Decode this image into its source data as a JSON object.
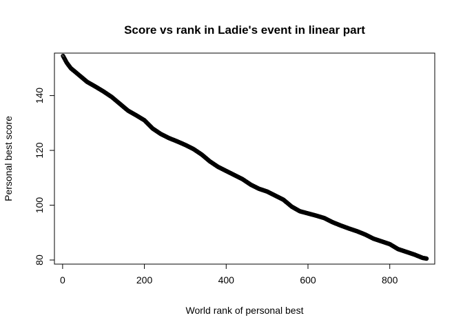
{
  "chart_data": {
    "type": "scatter",
    "title": "Score vs rank in Ladie's event in linear part",
    "xlabel": "World rank of personal best",
    "ylabel": "Personal best score",
    "xlim": [
      -20,
      910
    ],
    "ylim": [
      78.5,
      155.5
    ],
    "xticks": [
      0,
      200,
      400,
      600,
      800
    ],
    "yticks": [
      80,
      100,
      120,
      140
    ],
    "grid": false,
    "legend": "none",
    "point_color": "#000000",
    "n_points": 890,
    "curve_keypoints": [
      [
        1,
        154.5
      ],
      [
        10,
        152
      ],
      [
        20,
        150
      ],
      [
        40,
        147.5
      ],
      [
        60,
        145
      ],
      [
        80,
        143.3
      ],
      [
        100,
        141.5
      ],
      [
        120,
        139.5
      ],
      [
        140,
        137
      ],
      [
        160,
        134.5
      ],
      [
        180,
        132.8
      ],
      [
        200,
        131
      ],
      [
        220,
        128
      ],
      [
        240,
        126
      ],
      [
        260,
        124.5
      ],
      [
        280,
        123.3
      ],
      [
        300,
        122
      ],
      [
        320,
        120.5
      ],
      [
        340,
        118.5
      ],
      [
        360,
        116
      ],
      [
        380,
        114
      ],
      [
        400,
        112.5
      ],
      [
        420,
        111
      ],
      [
        440,
        109.5
      ],
      [
        460,
        107.5
      ],
      [
        480,
        106
      ],
      [
        500,
        105
      ],
      [
        520,
        103.5
      ],
      [
        540,
        102
      ],
      [
        560,
        99.5
      ],
      [
        580,
        97.8
      ],
      [
        600,
        97
      ],
      [
        620,
        96.2
      ],
      [
        640,
        95.3
      ],
      [
        660,
        93.8
      ],
      [
        680,
        92.6
      ],
      [
        700,
        91.5
      ],
      [
        720,
        90.5
      ],
      [
        740,
        89.3
      ],
      [
        760,
        87.8
      ],
      [
        780,
        86.8
      ],
      [
        800,
        85.8
      ],
      [
        820,
        84
      ],
      [
        840,
        83
      ],
      [
        860,
        82
      ],
      [
        880,
        80.8
      ],
      [
        890,
        80.5
      ]
    ]
  }
}
